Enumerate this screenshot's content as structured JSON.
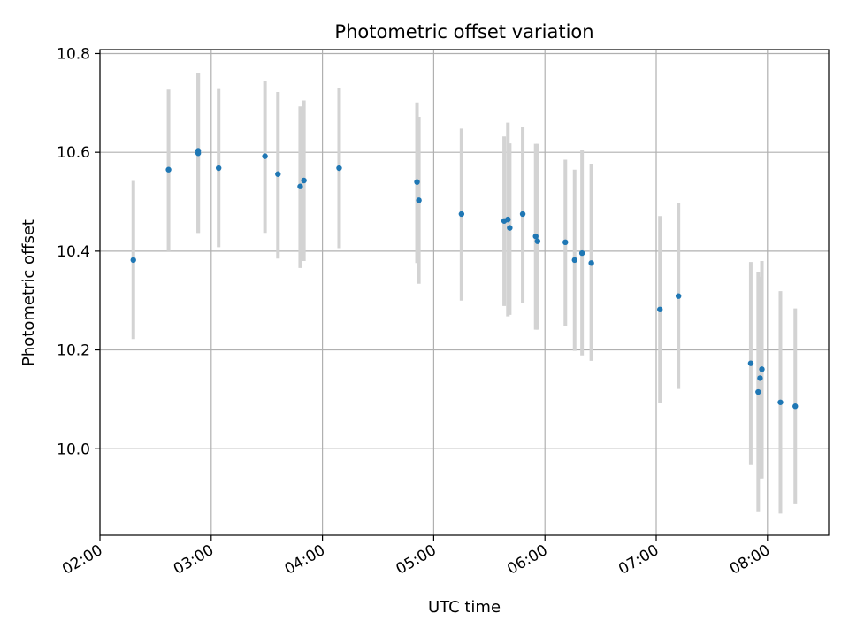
{
  "chart_data": {
    "type": "scatter",
    "title": "Photometric offset variation",
    "xlabel": "UTC time",
    "ylabel": "Photometric offset",
    "x_axis": "time",
    "xlim": [
      "02:00",
      "08:33"
    ],
    "ylim": [
      9.825,
      10.808
    ],
    "xticks": [
      "02:00",
      "03:00",
      "04:00",
      "05:00",
      "06:00",
      "07:00",
      "08:00"
    ],
    "yticks": [
      10.0,
      10.2,
      10.4,
      10.6,
      10.8
    ],
    "grid": true,
    "legend": "none",
    "colors": {
      "point": "#1f77b4",
      "errorbar": "#d3d3d3",
      "grid": "#b0b0b0"
    },
    "points": [
      {
        "x": "02:18",
        "y": 10.382,
        "low": 10.222,
        "high": 10.542
      },
      {
        "x": "02:37",
        "y": 10.565,
        "low": 10.4,
        "high": 10.727
      },
      {
        "x": "02:53",
        "y": 10.603,
        "low": 10.437,
        "high": 10.76
      },
      {
        "x": "02:53",
        "y": 10.598,
        "low": 10.437,
        "high": 10.76
      },
      {
        "x": "03:04",
        "y": 10.568,
        "low": 10.408,
        "high": 10.728
      },
      {
        "x": "03:29",
        "y": 10.592,
        "low": 10.437,
        "high": 10.745
      },
      {
        "x": "03:36",
        "y": 10.556,
        "low": 10.385,
        "high": 10.722
      },
      {
        "x": "03:48",
        "y": 10.531,
        "low": 10.366,
        "high": 10.693
      },
      {
        "x": "03:50",
        "y": 10.543,
        "low": 10.38,
        "high": 10.705
      },
      {
        "x": "04:09",
        "y": 10.568,
        "low": 10.406,
        "high": 10.73
      },
      {
        "x": "04:51",
        "y": 10.54,
        "low": 10.376,
        "high": 10.701
      },
      {
        "x": "04:52",
        "y": 10.503,
        "low": 10.334,
        "high": 10.672
      },
      {
        "x": "05:15",
        "y": 10.475,
        "low": 10.3,
        "high": 10.648
      },
      {
        "x": "05:38",
        "y": 10.461,
        "low": 10.289,
        "high": 10.632
      },
      {
        "x": "05:40",
        "y": 10.464,
        "low": 10.268,
        "high": 10.66
      },
      {
        "x": "05:41",
        "y": 10.447,
        "low": 10.271,
        "high": 10.618
      },
      {
        "x": "05:48",
        "y": 10.475,
        "low": 10.296,
        "high": 10.652
      },
      {
        "x": "05:55",
        "y": 10.43,
        "low": 10.241,
        "high": 10.617
      },
      {
        "x": "05:56",
        "y": 10.42,
        "low": 10.241,
        "high": 10.617
      },
      {
        "x": "06:11",
        "y": 10.418,
        "low": 10.249,
        "high": 10.585
      },
      {
        "x": "06:16",
        "y": 10.382,
        "low": 10.198,
        "high": 10.565
      },
      {
        "x": "06:20",
        "y": 10.396,
        "low": 10.189,
        "high": 10.605
      },
      {
        "x": "06:25",
        "y": 10.376,
        "low": 10.178,
        "high": 10.577
      },
      {
        "x": "07:02",
        "y": 10.282,
        "low": 10.093,
        "high": 10.471
      },
      {
        "x": "07:12",
        "y": 10.309,
        "low": 10.121,
        "high": 10.497
      },
      {
        "x": "07:51",
        "y": 10.173,
        "low": 9.967,
        "high": 10.378
      },
      {
        "x": "07:55",
        "y": 10.115,
        "low": 9.872,
        "high": 10.358
      },
      {
        "x": "07:56",
        "y": 10.143,
        "low": 9.94,
        "high": 10.348
      },
      {
        "x": "07:57",
        "y": 10.161,
        "low": 9.94,
        "high": 10.38
      },
      {
        "x": "08:07",
        "y": 10.094,
        "low": 9.869,
        "high": 10.319
      },
      {
        "x": "08:15",
        "y": 10.086,
        "low": 9.888,
        "high": 10.284
      }
    ]
  }
}
